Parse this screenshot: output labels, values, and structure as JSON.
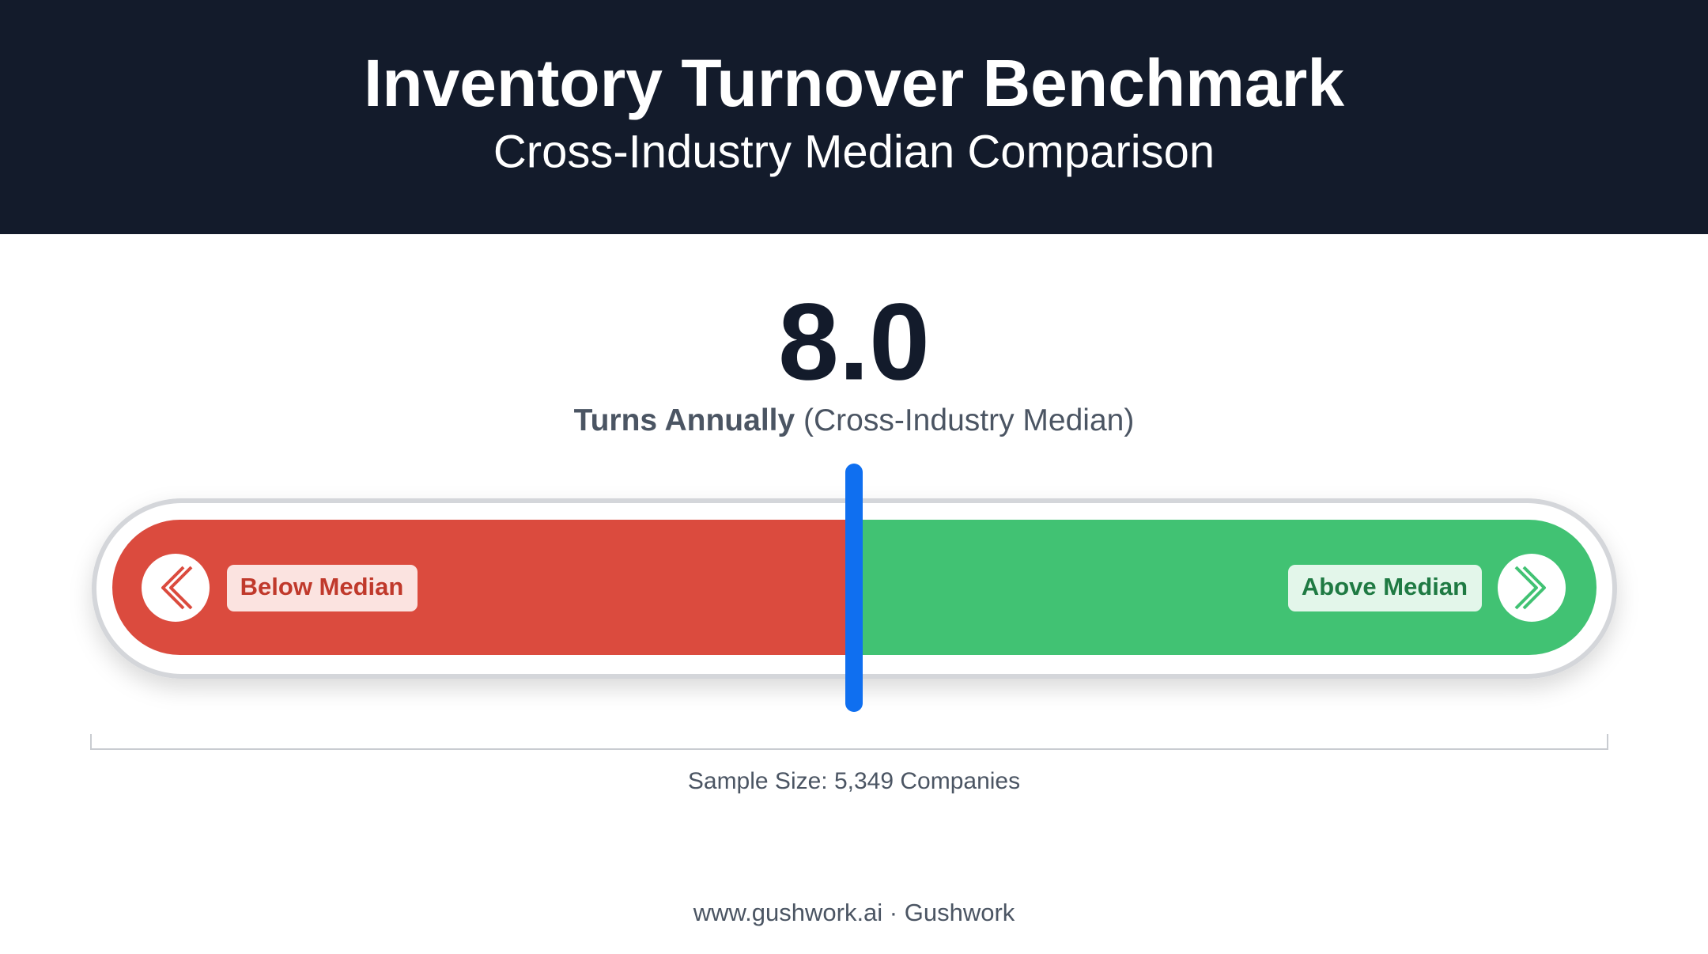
{
  "header": {
    "title": "Inventory Turnover Benchmark",
    "subtitle": "Cross-Industry Median Comparison"
  },
  "metric": {
    "value": "8.0",
    "label_bold": "Turns Annually",
    "label_rest": "(Cross-Industry Median)"
  },
  "gauge": {
    "left_label": "Below Median",
    "right_label": "Above Median"
  },
  "sample": "Sample Size: 5,349 Companies",
  "footer": "www.gushwork.ai · Gushwork"
}
